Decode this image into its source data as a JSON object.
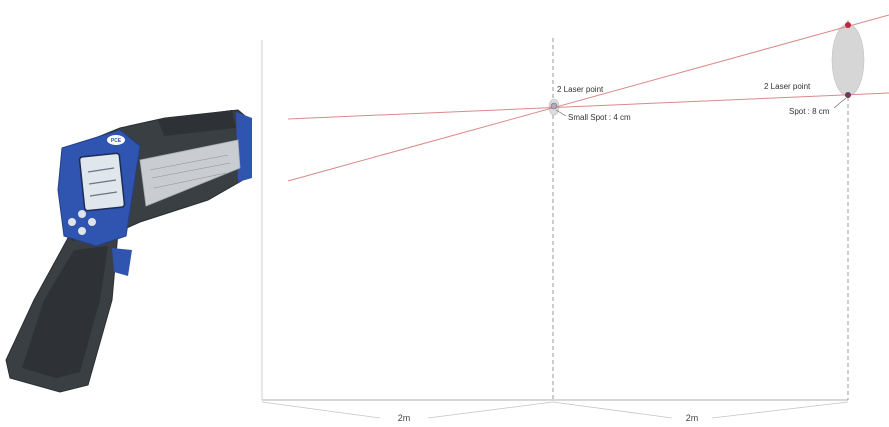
{
  "device": {
    "logo_text": "PCE"
  },
  "labels": {
    "laser_point_1": "2 Laser point",
    "small_spot": "Small Spot : 4 cm",
    "laser_point_2": "2 Laser point",
    "spot": "Spot : 8 cm"
  },
  "dimensions": {
    "segment_1": "2m",
    "segment_2": "2m"
  },
  "colors": {
    "laser_line": "#d98a8a",
    "laser_dot": "#c0283a",
    "device_blue": "#2f55b0",
    "device_body": "#3a3f44",
    "spot_ellipse": "#d6d6d6"
  }
}
